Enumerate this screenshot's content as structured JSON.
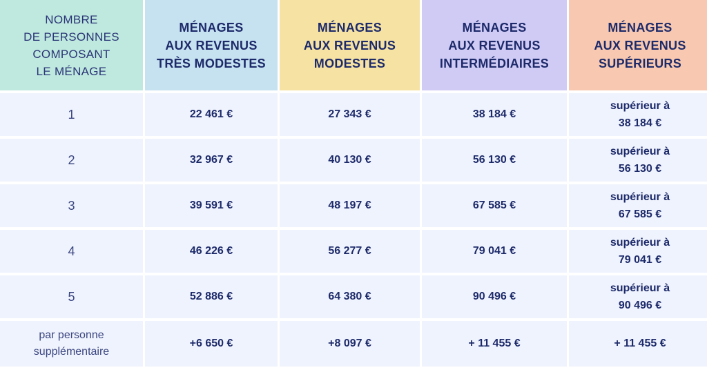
{
  "colors": {
    "header_bg": [
      "#bfe9de",
      "#c6e1f0",
      "#f6e3a3",
      "#cfcbf5",
      "#f8c9b0"
    ],
    "body_bg": "#eff3fd",
    "text": "#1d2a6a"
  },
  "headers": [
    "NOMBRE\nDE PERSONNES\nCOMPOSANT\nLE MÉNAGE",
    "MÉNAGES\nAUX REVENUS\nTRÈS MODESTES",
    "MÉNAGES\nAUX REVENUS\nMODESTES",
    "MÉNAGES\nAUX REVENUS\nINTERMÉDIAIRES",
    "MÉNAGES\nAUX REVENUS\nSUPÉRIEURS"
  ],
  "rows": [
    {
      "label": "1",
      "tres_modestes": "22 461 €",
      "modestes": "27 343 €",
      "intermediaires": "38 184 €",
      "superieurs": "supérieur à\n38 184 €"
    },
    {
      "label": "2",
      "tres_modestes": "32 967 €",
      "modestes": "40 130 €",
      "intermediaires": "56 130 €",
      "superieurs": "supérieur à\n56 130 €"
    },
    {
      "label": "3",
      "tres_modestes": "39 591 €",
      "modestes": "48 197 €",
      "intermediaires": "67 585 €",
      "superieurs": "supérieur à\n67 585 €"
    },
    {
      "label": "4",
      "tres_modestes": "46 226 €",
      "modestes": "56 277 €",
      "intermediaires": "79 041 €",
      "superieurs": "supérieur à\n79 041 €"
    },
    {
      "label": "5",
      "tres_modestes": "52 886 €",
      "modestes": "64 380 €",
      "intermediaires": "90 496 €",
      "superieurs": "supérieur à\n90 496 €"
    },
    {
      "label": "par personne\nsupplémentaire",
      "tres_modestes": "+6 650 €",
      "modestes": "+8 097 €",
      "intermediaires": "+ 11 455 €",
      "superieurs": "+ 11 455 €"
    }
  ]
}
